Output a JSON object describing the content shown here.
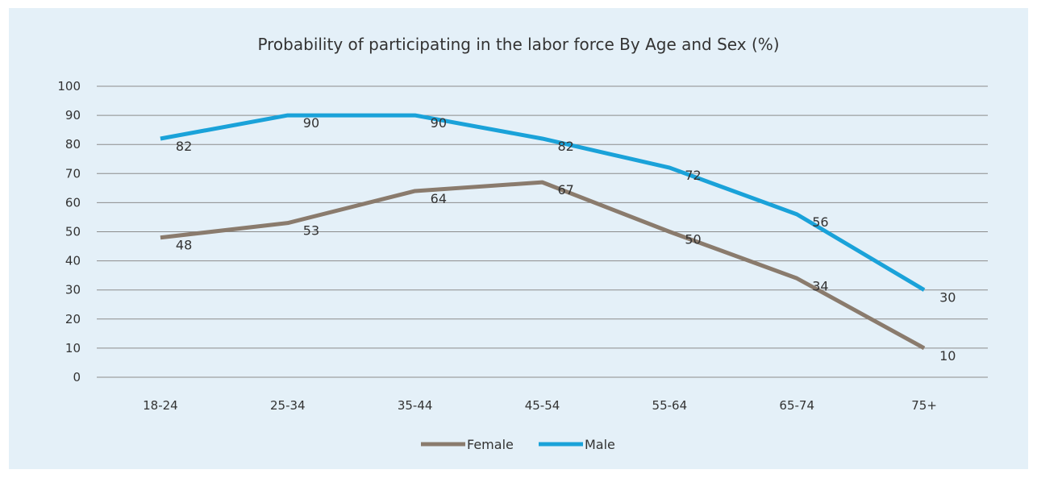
{
  "chart_data": {
    "type": "line",
    "title": "Probability of participating in the labor force By Age and Sex (%)",
    "xlabel": "",
    "ylabel": "",
    "ylim": [
      0,
      100
    ],
    "yticks": [
      0,
      10,
      20,
      30,
      40,
      50,
      60,
      70,
      80,
      90,
      100
    ],
    "grid": true,
    "legend_position": "bottom",
    "categories": [
      "18-24",
      "25-34",
      "35-44",
      "45-54",
      "55-64",
      "65-74",
      "75+"
    ],
    "series": [
      {
        "name": "Female",
        "color": "#8a7b6d",
        "values": [
          48,
          53,
          64,
          67,
          50,
          34,
          10
        ]
      },
      {
        "name": "Male",
        "color": "#1aa2d9",
        "values": [
          82,
          90,
          90,
          82,
          72,
          56,
          30
        ]
      }
    ]
  }
}
